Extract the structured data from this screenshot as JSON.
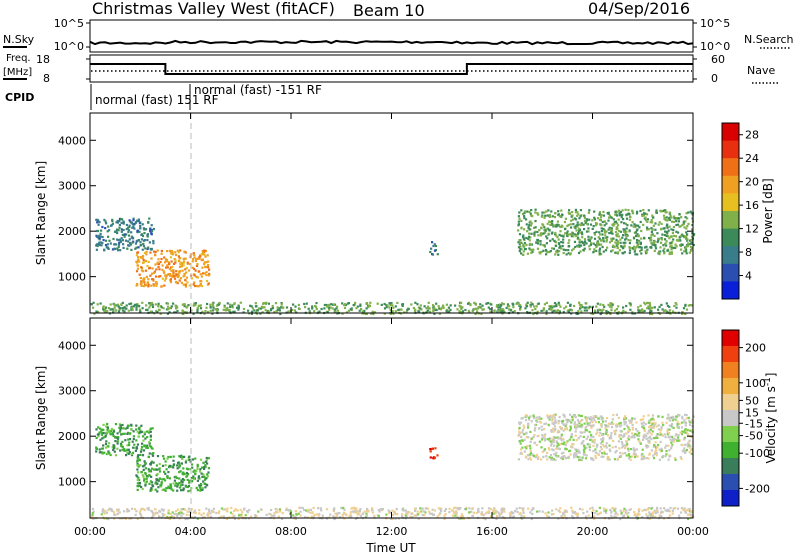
{
  "header": {
    "station": "Christmas Valley West (fitACF)",
    "beam": "Beam 10",
    "date": "04/Sep/2016"
  },
  "top_panels": {
    "nsky_label": "N.Sky",
    "nsearch_label": "N.Search",
    "freq_label_line1": "Freq.",
    "freq_label_line2": "[MHz]",
    "nave_label": "Nave",
    "cpid_label": "CPID",
    "noise_left_ticks": [
      "10^5",
      "10^0"
    ],
    "noise_right_ticks": [
      "10^5",
      "10^0"
    ],
    "freq_ticks": [
      "18",
      "8"
    ],
    "nave_ticks": [
      "60",
      "0"
    ],
    "cpid_segments": [
      "normal (fast) 151 RF",
      "normal (fast) -151 RF"
    ]
  },
  "colors": {
    "power_scale": [
      "#0a1fd8",
      "#2a4fb0",
      "#3a7d8a",
      "#3c8a5a",
      "#7fb04a",
      "#e6c020",
      "#f0a020",
      "#f07018",
      "#e83010",
      "#d80000"
    ],
    "velocity_scale": [
      "#e00000",
      "#f04010",
      "#f08020",
      "#f0b040",
      "#f0d090",
      "#c8c8c8",
      "#80d050",
      "#40b030",
      "#3a7d5a",
      "#2a4fb0",
      "#1020c8"
    ],
    "grey": "#c8c8c8"
  },
  "chart_data": [
    {
      "type": "heatmap",
      "title": "Power",
      "xlabel": "",
      "ylabel": "Slant Range [km]",
      "x_ticks": [
        "00:00",
        "04:00",
        "08:00",
        "12:00",
        "16:00",
        "20:00",
        "00:00"
      ],
      "x_range_hours": [
        0,
        24
      ],
      "y_ticks": [
        1000,
        2000,
        3000,
        4000
      ],
      "ylim": [
        200,
        4600
      ],
      "colorbar": {
        "label": "Power [dB]",
        "ticks": [
          4,
          8,
          12,
          16,
          20,
          24,
          28
        ],
        "range": [
          0,
          30
        ]
      },
      "echo_regions": [
        {
          "time_start": 0.0,
          "time_end": 24.0,
          "range_start": 200,
          "range_end": 450,
          "value": 12
        },
        {
          "time_start": 0.2,
          "time_end": 2.5,
          "range_start": 1600,
          "range_end": 2300,
          "value": 8
        },
        {
          "time_start": 1.8,
          "time_end": 4.7,
          "range_start": 800,
          "range_end": 1600,
          "value": 20
        },
        {
          "time_start": 13.5,
          "time_end": 13.8,
          "range_start": 1500,
          "range_end": 1800,
          "value": 8
        },
        {
          "time_start": 17.0,
          "time_end": 24.0,
          "range_start": 1500,
          "range_end": 2500,
          "value": 12
        }
      ]
    },
    {
      "type": "heatmap",
      "title": "Velocity",
      "xlabel": "Time UT",
      "ylabel": "Slant Range [km]",
      "x_ticks": [
        "00:00",
        "04:00",
        "08:00",
        "12:00",
        "16:00",
        "20:00",
        "00:00"
      ],
      "x_range_hours": [
        0,
        24
      ],
      "y_ticks": [
        1000,
        2000,
        3000,
        4000
      ],
      "ylim": [
        200,
        4600
      ],
      "colorbar": {
        "label": "Velocity [m s^-1]",
        "ticks": [
          200,
          100,
          50,
          15,
          -15,
          -50,
          -100,
          -200
        ],
        "range": [
          -250,
          250
        ]
      },
      "echo_regions": [
        {
          "time_start": 0.0,
          "time_end": 24.0,
          "range_start": 200,
          "range_end": 450,
          "value": 15
        },
        {
          "time_start": 0.2,
          "time_end": 2.5,
          "range_start": 1600,
          "range_end": 2300,
          "value": -100
        },
        {
          "time_start": 1.8,
          "time_end": 4.7,
          "range_start": 800,
          "range_end": 1600,
          "value": -100
        },
        {
          "time_start": 13.5,
          "time_end": 13.8,
          "range_start": 1500,
          "range_end": 1800,
          "value": 200
        },
        {
          "time_start": 17.0,
          "time_end": 24.0,
          "range_start": 1500,
          "range_end": 2500,
          "value": 0
        }
      ]
    }
  ]
}
